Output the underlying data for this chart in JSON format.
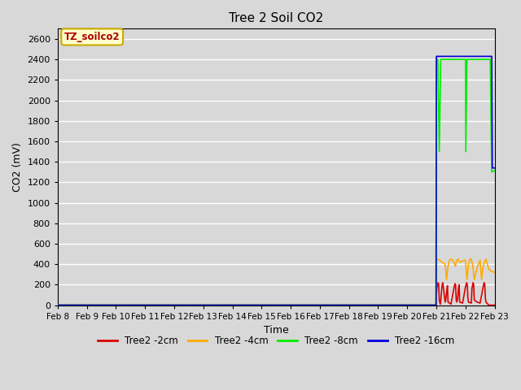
{
  "title": "Tree 2 Soil CO2",
  "xlabel": "Time",
  "ylabel": "CO2 (mV)",
  "ylim": [
    0,
    2700
  ],
  "background_color": "#d8d8d8",
  "plot_bg_color": "#d8d8d8",
  "grid_color": "white",
  "annotation_text": "TZ_soilco2",
  "annotation_box_color": "#ffffcc",
  "annotation_border_color": "#ccaa00",
  "legend_labels": [
    "Tree2 -2cm",
    "Tree2 -4cm",
    "Tree2 -8cm",
    "Tree2 -16cm"
  ],
  "line_colors": [
    "#dd0000",
    "#ffaa00",
    "#00ee00",
    "#0000dd"
  ],
  "date_labels": [
    "Feb 8",
    "Feb 9",
    "Feb 10",
    "Feb 11",
    "Feb 12",
    "Feb 13",
    "Feb 14",
    "Feb 15",
    "Feb 16",
    "Feb 17",
    "Feb 18",
    "Feb 19",
    "Feb 20",
    "Feb 21",
    "Feb 22",
    "Feb 23"
  ],
  "yticks": [
    0,
    200,
    400,
    600,
    800,
    1000,
    1200,
    1400,
    1600,
    1800,
    2000,
    2200,
    2400,
    2600
  ],
  "series": {
    "2cm": {
      "x": [
        0,
        12.99,
        13.0,
        13.02,
        13.04,
        13.06,
        13.08,
        13.1,
        13.12,
        13.14,
        13.16,
        13.18,
        13.2,
        13.22,
        13.3,
        13.32,
        13.34,
        13.36,
        13.38,
        13.4,
        13.5,
        13.6,
        13.62,
        13.64,
        13.66,
        13.68,
        13.7,
        13.72,
        13.74,
        13.76,
        13.78,
        13.8,
        13.9,
        14.0,
        14.02,
        14.04,
        14.06,
        14.08,
        14.1,
        14.2,
        14.22,
        14.24,
        14.26,
        14.28,
        14.3,
        14.4,
        14.5,
        14.6,
        14.62,
        14.64,
        14.66,
        14.68,
        14.7,
        14.8,
        14.9,
        15.0
      ],
      "y": [
        0,
        0,
        100,
        170,
        200,
        220,
        200,
        50,
        20,
        10,
        80,
        150,
        200,
        220,
        30,
        50,
        100,
        150,
        190,
        30,
        10,
        160,
        190,
        210,
        200,
        50,
        30,
        50,
        100,
        170,
        200,
        30,
        20,
        180,
        200,
        220,
        200,
        80,
        30,
        20,
        160,
        190,
        220,
        200,
        50,
        30,
        20,
        170,
        200,
        220,
        200,
        80,
        30,
        0,
        0,
        0
      ]
    },
    "4cm": {
      "x": [
        0,
        12.99,
        13.0,
        13.02,
        13.1,
        13.2,
        13.3,
        13.35,
        13.4,
        13.45,
        13.5,
        13.55,
        13.6,
        13.65,
        13.7,
        13.75,
        13.8,
        14.0,
        14.05,
        14.1,
        14.15,
        14.2,
        14.25,
        14.3,
        14.4,
        14.5,
        14.55,
        14.6,
        14.65,
        14.7,
        14.75,
        14.8,
        14.9,
        15.0
      ],
      "y": [
        0,
        0,
        450,
        450,
        440,
        420,
        400,
        250,
        380,
        440,
        450,
        440,
        420,
        380,
        440,
        450,
        420,
        440,
        250,
        390,
        450,
        450,
        380,
        250,
        370,
        440,
        250,
        370,
        420,
        450,
        400,
        350,
        330,
        320
      ]
    },
    "8cm": {
      "x": [
        0,
        12.99,
        13.0,
        13.01,
        13.05,
        13.1,
        13.15,
        13.9,
        13.95,
        14.0,
        14.01,
        14.05,
        14.85,
        14.9,
        14.92,
        15.0
      ],
      "y": [
        0,
        0,
        2400,
        2400,
        2400,
        1500,
        2400,
        2400,
        2400,
        2400,
        1500,
        2400,
        2400,
        1300,
        1310,
        1310
      ]
    },
    "16cm": {
      "x": [
        0,
        12.99,
        13.0,
        13.01,
        13.9,
        13.95,
        14.0,
        14.01,
        14.85,
        14.87,
        14.9,
        14.92,
        15.0
      ],
      "y": [
        0,
        0,
        2430,
        2430,
        2430,
        2430,
        2430,
        2430,
        2430,
        2430,
        2430,
        1340,
        1340
      ]
    }
  }
}
